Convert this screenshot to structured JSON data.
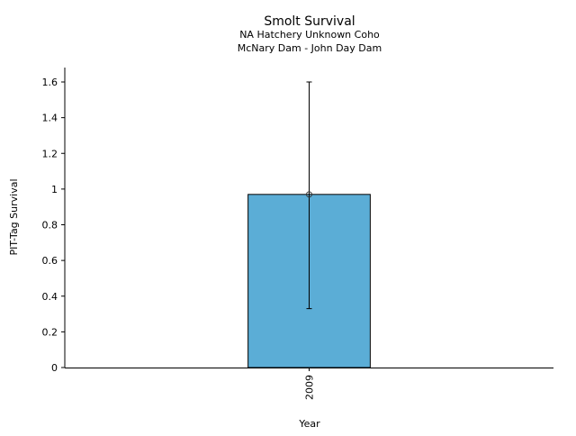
{
  "chart_data": {
    "type": "bar",
    "title": "Smolt Survival",
    "subtitle_lines": [
      "NA Hatchery Unknown Coho",
      "McNary Dam - John Day Dam"
    ],
    "xlabel": "Year",
    "ylabel": "PIT-Tag Survival",
    "categories": [
      "2009"
    ],
    "values": [
      0.97
    ],
    "error_low": [
      0.33
    ],
    "error_high": [
      1.6
    ],
    "ylim": [
      0,
      1.68
    ],
    "yticks": [
      0,
      0.2,
      0.4,
      0.6,
      0.8,
      1,
      1.2,
      1.4,
      1.6
    ],
    "ytick_labels": [
      "0",
      "0.2",
      "0.4",
      "0.6",
      "0.8",
      "1",
      "1.2",
      "1.4",
      "1.6"
    ],
    "grid": false,
    "bar_color": "#5badd6"
  }
}
